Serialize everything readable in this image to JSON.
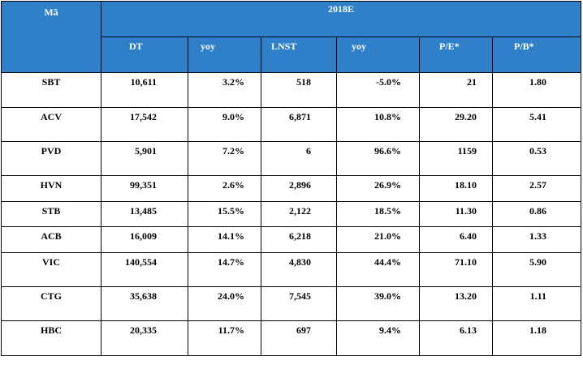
{
  "table": {
    "header": {
      "code_label": "Mã",
      "year_label": "2018E",
      "columns": [
        "DT",
        "yoy",
        "LNST",
        "yoy",
        "P/E*",
        "P/B*"
      ]
    },
    "rows": [
      {
        "code": "SBT",
        "dt": "10,611",
        "yoy1": "3.2%",
        "lnst": "518",
        "yoy2": "-5.0%",
        "pe": "21",
        "pb": "1.80"
      },
      {
        "code": "ACV",
        "dt": "17,542",
        "yoy1": "9.0%",
        "lnst": "6,871",
        "yoy2": "10.8%",
        "pe": "29.20",
        "pb": "5.41"
      },
      {
        "code": "PVD",
        "dt": "5,901",
        "yoy1": "7.2%",
        "lnst": "6",
        "yoy2": "96.6%",
        "pe": "1159",
        "pb": "0.53"
      },
      {
        "code": "HVN",
        "dt": "99,351",
        "yoy1": "2.6%",
        "lnst": "2,896",
        "yoy2": "26.9%",
        "pe": "18.10",
        "pb": "2.57"
      },
      {
        "code": "STB",
        "dt": "13,485",
        "yoy1": "15.5%",
        "lnst": "2,122",
        "yoy2": "18.5%",
        "pe": "11.30",
        "pb": "0.86"
      },
      {
        "code": "ACB",
        "dt": "16,009",
        "yoy1": "14.1%",
        "lnst": "6,218",
        "yoy2": "21.0%",
        "pe": "6.40",
        "pb": "1.33"
      },
      {
        "code": "VIC",
        "dt": "140,554",
        "yoy1": "14.7%",
        "lnst": "4,830",
        "yoy2": "44.4%",
        "pe": "71.10",
        "pb": "5.90"
      },
      {
        "code": "CTG",
        "dt": "35,638",
        "yoy1": "24.0%",
        "lnst": "7,545",
        "yoy2": "39.0%",
        "pe": "13.20",
        "pb": "1.11"
      },
      {
        "code": "HBC",
        "dt": "20,335",
        "yoy1": "11.7%",
        "lnst": "697",
        "yoy2": "9.4%",
        "pe": "6.13",
        "pb": "1.18"
      }
    ],
    "colors": {
      "header_bg": "#2F7FC9",
      "header_text": "#FFFFFF",
      "border": "#000000"
    }
  }
}
